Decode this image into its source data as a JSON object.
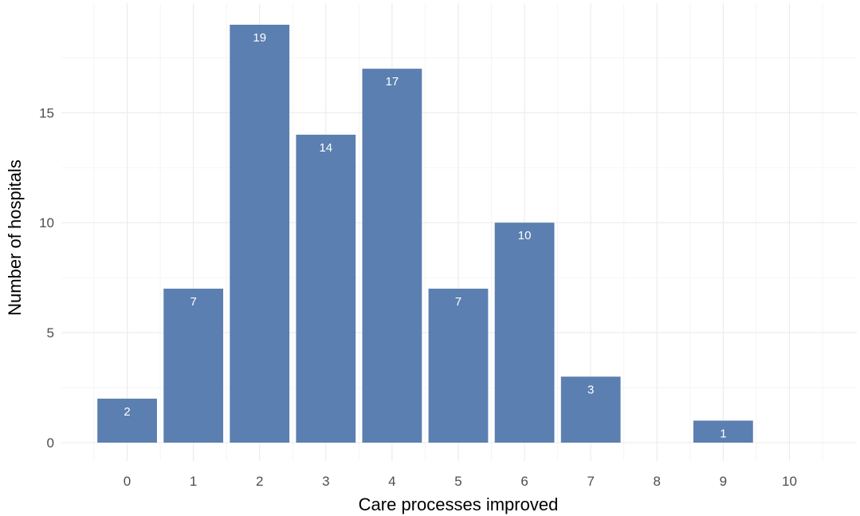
{
  "chart_data": {
    "type": "bar",
    "categories": [
      "0",
      "1",
      "2",
      "3",
      "4",
      "5",
      "6",
      "7",
      "8",
      "9",
      "10"
    ],
    "values": [
      2,
      7,
      19,
      14,
      17,
      7,
      10,
      3,
      0,
      1,
      0
    ],
    "data_labels": [
      "2",
      "7",
      "19",
      "14",
      "17",
      "7",
      "10",
      "3",
      "",
      "1",
      ""
    ],
    "title": "",
    "xlabel": "Care processes improved",
    "ylabel": "Number of hospitals",
    "ylim": [
      0,
      19.9
    ],
    "yticks": [
      "0",
      "5",
      "10",
      "15"
    ],
    "ytick_values": [
      0,
      5,
      10,
      15
    ],
    "grid": true,
    "legend": "none",
    "bar_color": "#5b7fb0",
    "bar_label_color": "#ffffff"
  }
}
